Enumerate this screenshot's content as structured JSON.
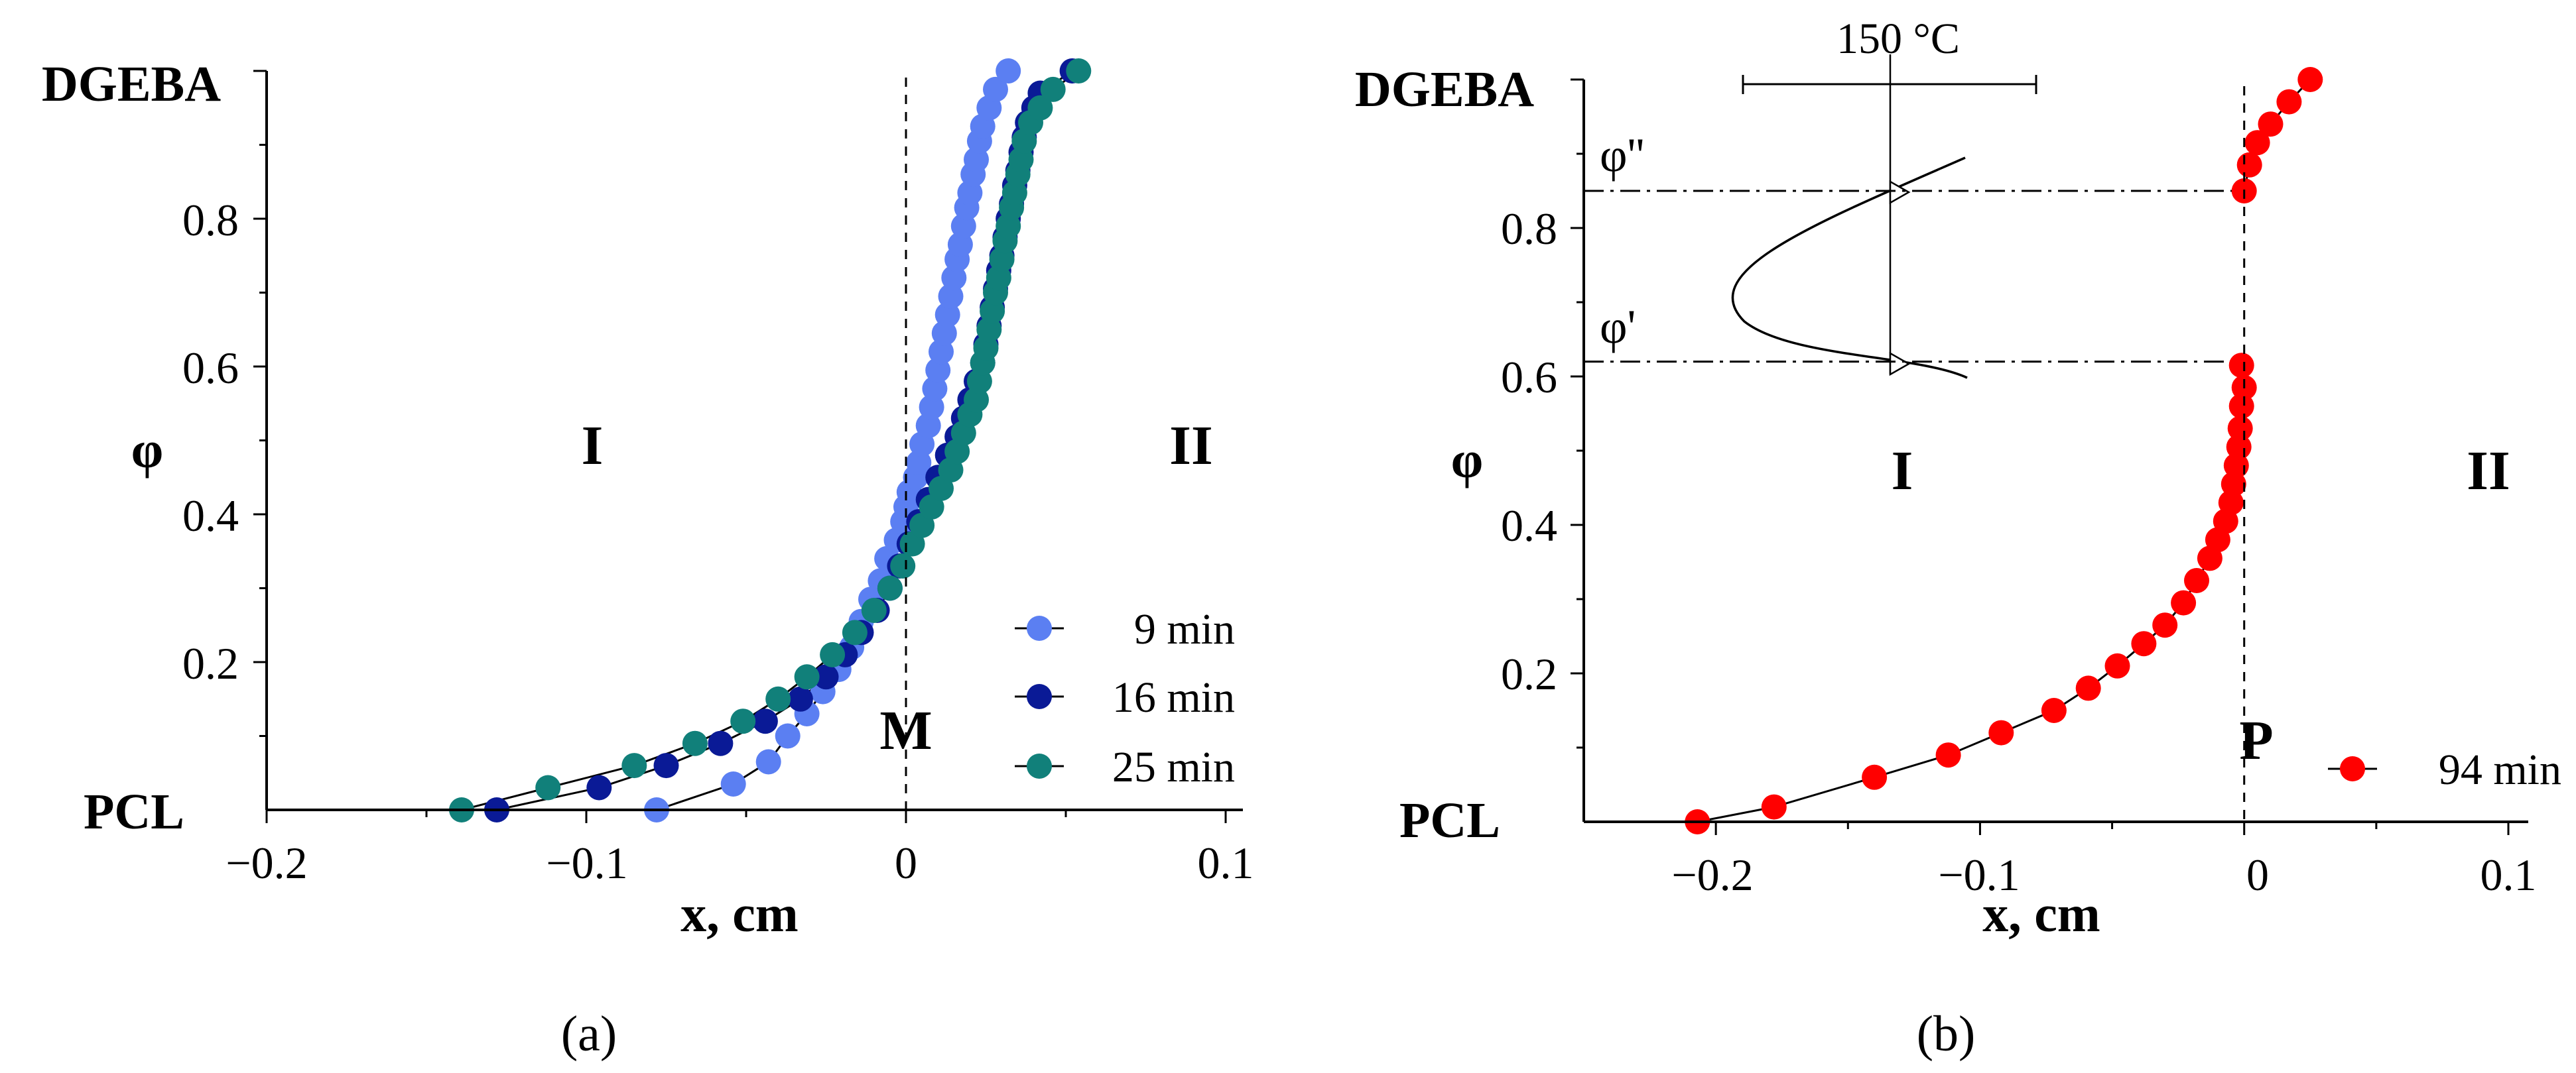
{
  "figure": {
    "captions": {
      "a": "(a)",
      "b": "(b)"
    }
  },
  "chart_data": [
    {
      "type": "scatter",
      "panel": "(a)",
      "title": "",
      "xlabel": "x, cm",
      "ylabel": "φ",
      "xlim": [
        -0.2,
        0.1
      ],
      "ylim": [
        0,
        1
      ],
      "xticks": [
        "−0.2",
        "−0.1",
        "0",
        "0.1"
      ],
      "yticks": [
        "0.2",
        "0.4",
        "0.6",
        "0.8"
      ],
      "end_labels": {
        "top": "DGEBA",
        "bottom": "PCL"
      },
      "region_labels": [
        "I",
        "II"
      ],
      "marker_label": "M",
      "dashed_x": 0,
      "legend_position": "bottom-right",
      "series": [
        {
          "name": "9 min",
          "color": "#5B7FF2",
          "x": [
            -0.078,
            -0.054,
            -0.043,
            -0.037,
            -0.031,
            -0.026,
            -0.021,
            -0.017,
            -0.014,
            -0.011,
            -0.008,
            -0.006,
            -0.003,
            -0.001,
            0.0,
            0.001,
            0.003,
            0.004,
            0.005,
            0.007,
            0.008,
            0.009,
            0.01,
            0.011,
            0.012,
            0.013,
            0.014,
            0.015,
            0.016,
            0.017,
            0.018,
            0.019,
            0.02,
            0.021,
            0.022,
            0.023,
            0.024,
            0.026,
            0.028,
            0.032
          ],
          "y": [
            0.0,
            0.035,
            0.065,
            0.1,
            0.13,
            0.16,
            0.19,
            0.22,
            0.255,
            0.285,
            0.31,
            0.34,
            0.365,
            0.39,
            0.41,
            0.43,
            0.45,
            0.47,
            0.495,
            0.52,
            0.545,
            0.57,
            0.595,
            0.62,
            0.645,
            0.67,
            0.695,
            0.72,
            0.745,
            0.765,
            0.79,
            0.815,
            0.835,
            0.86,
            0.88,
            0.905,
            0.925,
            0.95,
            0.975,
            1.0
          ]
        },
        {
          "name": "16 min",
          "color": "#0A1A96",
          "x": [
            -0.128,
            -0.096,
            -0.075,
            -0.058,
            -0.044,
            -0.033,
            -0.025,
            -0.019,
            -0.014,
            -0.009,
            -0.005,
            -0.002,
            0.001,
            0.004,
            0.007,
            0.01,
            0.013,
            0.016,
            0.018,
            0.02,
            0.022,
            0.024,
            0.025,
            0.026,
            0.027,
            0.028,
            0.029,
            0.03,
            0.031,
            0.032,
            0.033,
            0.034,
            0.035,
            0.036,
            0.037,
            0.038,
            0.04,
            0.042,
            0.052
          ],
          "y": [
            0.0,
            0.03,
            0.06,
            0.09,
            0.12,
            0.15,
            0.18,
            0.21,
            0.24,
            0.27,
            0.3,
            0.33,
            0.36,
            0.39,
            0.42,
            0.45,
            0.48,
            0.505,
            0.53,
            0.555,
            0.58,
            0.605,
            0.63,
            0.655,
            0.68,
            0.705,
            0.73,
            0.75,
            0.775,
            0.8,
            0.82,
            0.845,
            0.865,
            0.89,
            0.91,
            0.93,
            0.95,
            0.97,
            1.0
          ]
        },
        {
          "name": "25 min",
          "color": "#11807A",
          "x": [
            -0.139,
            -0.112,
            -0.085,
            -0.066,
            -0.051,
            -0.04,
            -0.031,
            -0.023,
            -0.016,
            -0.01,
            -0.005,
            -0.001,
            0.002,
            0.005,
            0.008,
            0.011,
            0.014,
            0.016,
            0.018,
            0.02,
            0.022,
            0.023,
            0.024,
            0.025,
            0.026,
            0.027,
            0.028,
            0.029,
            0.03,
            0.031,
            0.032,
            0.033,
            0.034,
            0.035,
            0.036,
            0.037,
            0.039,
            0.042,
            0.046,
            0.054
          ],
          "y": [
            0.0,
            0.03,
            0.06,
            0.09,
            0.12,
            0.15,
            0.18,
            0.21,
            0.24,
            0.27,
            0.3,
            0.33,
            0.36,
            0.385,
            0.41,
            0.435,
            0.46,
            0.485,
            0.51,
            0.535,
            0.555,
            0.58,
            0.605,
            0.625,
            0.65,
            0.675,
            0.7,
            0.72,
            0.745,
            0.77,
            0.79,
            0.815,
            0.835,
            0.86,
            0.88,
            0.905,
            0.93,
            0.95,
            0.975,
            1.0
          ]
        }
      ]
    },
    {
      "type": "scatter",
      "panel": "(b)",
      "title": "",
      "xlabel": "x, cm",
      "ylabel": "φ",
      "xlim": [
        -0.25,
        0.1
      ],
      "ylim": [
        0,
        1
      ],
      "xticks": [
        "−0.2",
        "−0.1",
        "0",
        "0.1"
      ],
      "yticks": [
        "0.2",
        "0.4",
        "0.6",
        "0.8"
      ],
      "end_labels": {
        "top": "DGEBA",
        "bottom": "PCL"
      },
      "region_labels": [
        "I",
        "II"
      ],
      "marker_label": "P",
      "dashed_x": 0,
      "legend_position": "bottom-right",
      "inset": {
        "temperature_label": "150 °C",
        "phi_double_prime": "φ''",
        "phi_prime": "φ'",
        "phi_double_prime_value": 0.85,
        "phi_prime_value": 0.62
      },
      "series": [
        {
          "name": "94 min",
          "color": "#FF0000",
          "x": [
            -0.207,
            -0.178,
            -0.14,
            -0.112,
            -0.092,
            -0.072,
            -0.059,
            -0.048,
            -0.038,
            -0.03,
            -0.023,
            -0.018,
            -0.013,
            -0.01,
            -0.007,
            -0.005,
            -0.004,
            -0.003,
            -0.002,
            -0.0015,
            -0.001,
            0.0,
            -0.001,
            0.0,
            0.002,
            0.005,
            0.01,
            0.017,
            0.025
          ],
          "y": [
            0.0,
            0.02,
            0.06,
            0.09,
            0.12,
            0.15,
            0.18,
            0.21,
            0.24,
            0.265,
            0.295,
            0.325,
            0.355,
            0.38,
            0.405,
            0.43,
            0.455,
            0.48,
            0.505,
            0.53,
            0.56,
            0.585,
            0.615,
            0.85,
            0.885,
            0.915,
            0.94,
            0.97,
            1.0
          ]
        }
      ]
    }
  ]
}
